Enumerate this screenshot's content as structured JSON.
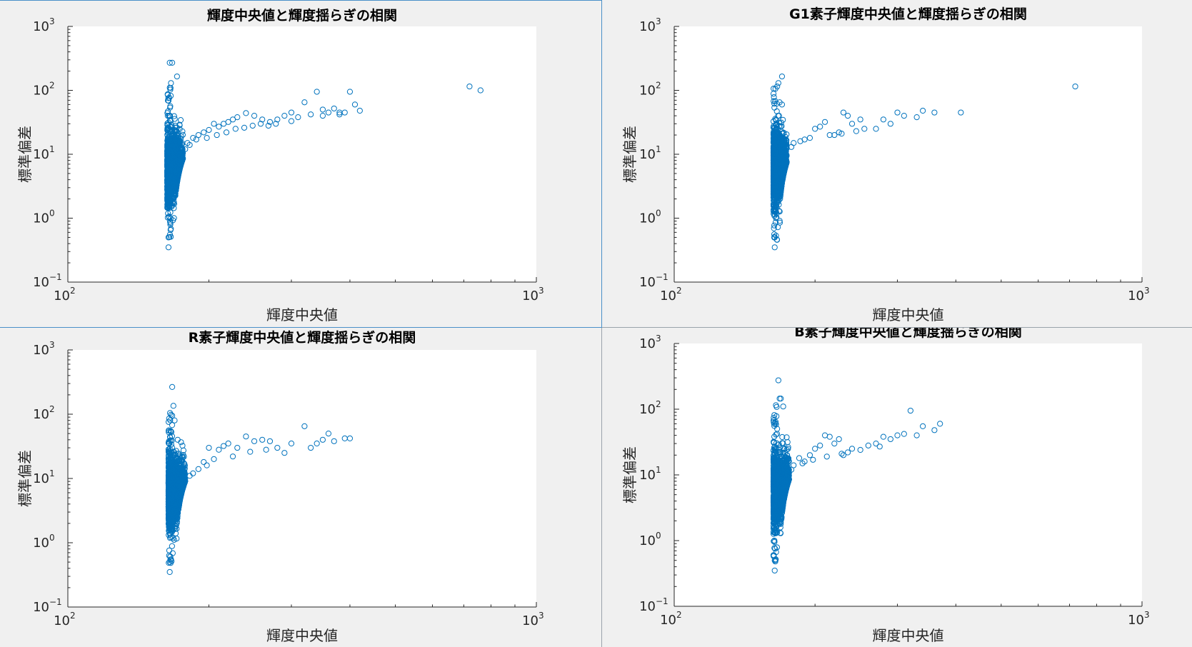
{
  "style": {
    "marker_color": "#0072bd",
    "axes_background": "#ffffff",
    "figure_background": "#f0f0f0",
    "axis_color": "#262626"
  },
  "chart_data": [
    {
      "type": "scatter",
      "title": "輝度中央値と輝度揺らぎの相関",
      "xlabel": "輝度中央値",
      "ylabel": "標準偏差",
      "xscale": "log",
      "yscale": "log",
      "xlim": [
        100,
        1000
      ],
      "ylim": [
        0.1,
        1000
      ],
      "xticks": [
        {
          "base": "10",
          "exp": "2"
        },
        {
          "base": "10",
          "exp": "3"
        }
      ],
      "yticks": [
        {
          "base": "10",
          "exp": "−1"
        },
        {
          "base": "10",
          "exp": "0"
        },
        {
          "base": "10",
          "exp": "1"
        },
        {
          "base": "10",
          "exp": "2"
        },
        {
          "base": "10",
          "exp": "3"
        }
      ],
      "marker": "open circle",
      "grid": false,
      "cluster": {
        "x_min": 163,
        "x_max": 176,
        "y_min": 0.35,
        "y_max": 275
      },
      "points": [
        {
          "x": 165,
          "y": 270
        },
        {
          "x": 167,
          "y": 270
        },
        {
          "x": 171,
          "y": 165
        },
        {
          "x": 166,
          "y": 130
        },
        {
          "x": 165,
          "y": 110
        },
        {
          "x": 164,
          "y": 0.35
        },
        {
          "x": 164,
          "y": 0.5
        },
        {
          "x": 180,
          "y": 15
        },
        {
          "x": 185,
          "y": 18
        },
        {
          "x": 190,
          "y": 20
        },
        {
          "x": 195,
          "y": 22
        },
        {
          "x": 200,
          "y": 24
        },
        {
          "x": 205,
          "y": 30
        },
        {
          "x": 210,
          "y": 27
        },
        {
          "x": 215,
          "y": 30
        },
        {
          "x": 220,
          "y": 32
        },
        {
          "x": 225,
          "y": 35
        },
        {
          "x": 230,
          "y": 38
        },
        {
          "x": 240,
          "y": 44
        },
        {
          "x": 250,
          "y": 40
        },
        {
          "x": 260,
          "y": 35
        },
        {
          "x": 270,
          "y": 32
        },
        {
          "x": 280,
          "y": 35
        },
        {
          "x": 290,
          "y": 40
        },
        {
          "x": 300,
          "y": 45
        },
        {
          "x": 320,
          "y": 65
        },
        {
          "x": 330,
          "y": 42
        },
        {
          "x": 340,
          "y": 95
        },
        {
          "x": 350,
          "y": 50
        },
        {
          "x": 360,
          "y": 45
        },
        {
          "x": 370,
          "y": 52
        },
        {
          "x": 380,
          "y": 45
        },
        {
          "x": 390,
          "y": 45
        },
        {
          "x": 400,
          "y": 95
        },
        {
          "x": 410,
          "y": 60
        },
        {
          "x": 420,
          "y": 48
        },
        {
          "x": 720,
          "y": 115
        },
        {
          "x": 760,
          "y": 100
        },
        {
          "x": 178,
          "y": 12
        },
        {
          "x": 182,
          "y": 14
        },
        {
          "x": 188,
          "y": 17
        },
        {
          "x": 198,
          "y": 18
        },
        {
          "x": 208,
          "y": 20
        },
        {
          "x": 218,
          "y": 22
        },
        {
          "x": 228,
          "y": 25
        },
        {
          "x": 238,
          "y": 26
        },
        {
          "x": 248,
          "y": 28
        },
        {
          "x": 258,
          "y": 30
        },
        {
          "x": 268,
          "y": 28
        },
        {
          "x": 278,
          "y": 30
        },
        {
          "x": 300,
          "y": 33
        },
        {
          "x": 310,
          "y": 38
        },
        {
          "x": 350,
          "y": 40
        },
        {
          "x": 380,
          "y": 42
        }
      ]
    },
    {
      "type": "scatter",
      "title": "G1素子輝度中央値と輝度揺らぎの相関",
      "xlabel": "輝度中央値",
      "ylabel": "標準偏差",
      "xscale": "log",
      "yscale": "log",
      "xlim": [
        100,
        1000
      ],
      "ylim": [
        0.1,
        1000
      ],
      "xticks": [
        {
          "base": "10",
          "exp": "2"
        },
        {
          "base": "10",
          "exp": "3"
        }
      ],
      "yticks": [
        {
          "base": "10",
          "exp": "−1"
        },
        {
          "base": "10",
          "exp": "0"
        },
        {
          "base": "10",
          "exp": "1"
        },
        {
          "base": "10",
          "exp": "2"
        },
        {
          "base": "10",
          "exp": "3"
        }
      ],
      "marker": "open circle",
      "grid": false,
      "cluster": {
        "x_min": 163,
        "x_max": 174,
        "y_min": 0.35,
        "y_max": 170
      },
      "points": [
        {
          "x": 170,
          "y": 165
        },
        {
          "x": 167,
          "y": 130
        },
        {
          "x": 166,
          "y": 115
        },
        {
          "x": 168,
          "y": 65
        },
        {
          "x": 170,
          "y": 60
        },
        {
          "x": 164,
          "y": 0.35
        },
        {
          "x": 164,
          "y": 0.5
        },
        {
          "x": 180,
          "y": 15
        },
        {
          "x": 190,
          "y": 17
        },
        {
          "x": 200,
          "y": 25
        },
        {
          "x": 205,
          "y": 27
        },
        {
          "x": 210,
          "y": 32
        },
        {
          "x": 220,
          "y": 20
        },
        {
          "x": 225,
          "y": 22
        },
        {
          "x": 230,
          "y": 45
        },
        {
          "x": 235,
          "y": 40
        },
        {
          "x": 240,
          "y": 30
        },
        {
          "x": 250,
          "y": 35
        },
        {
          "x": 255,
          "y": 25
        },
        {
          "x": 280,
          "y": 35
        },
        {
          "x": 300,
          "y": 45
        },
        {
          "x": 310,
          "y": 40
        },
        {
          "x": 330,
          "y": 38
        },
        {
          "x": 340,
          "y": 48
        },
        {
          "x": 360,
          "y": 45
        },
        {
          "x": 410,
          "y": 45
        },
        {
          "x": 720,
          "y": 115
        },
        {
          "x": 178,
          "y": 13
        },
        {
          "x": 186,
          "y": 16
        },
        {
          "x": 195,
          "y": 18
        },
        {
          "x": 215,
          "y": 20
        },
        {
          "x": 228,
          "y": 21
        },
        {
          "x": 245,
          "y": 23
        },
        {
          "x": 270,
          "y": 25
        },
        {
          "x": 290,
          "y": 30
        }
      ]
    },
    {
      "type": "scatter",
      "title": "R素子輝度中央値と輝度揺らぎの相関",
      "xlabel": "輝度中央値",
      "ylabel": "標準偏差",
      "xscale": "log",
      "yscale": "log",
      "xlim": [
        100,
        1000
      ],
      "ylim": [
        0.1,
        1000
      ],
      "xticks": [
        {
          "base": "10",
          "exp": "2"
        },
        {
          "base": "10",
          "exp": "3"
        }
      ],
      "yticks": [
        {
          "base": "10",
          "exp": "−1"
        },
        {
          "base": "10",
          "exp": "0"
        },
        {
          "base": "10",
          "exp": "1"
        },
        {
          "base": "10",
          "exp": "2"
        },
        {
          "base": "10",
          "exp": "3"
        }
      ],
      "marker": "open circle",
      "grid": false,
      "cluster": {
        "x_min": 164,
        "x_max": 178,
        "y_min": 0.35,
        "y_max": 270
      },
      "points": [
        {
          "x": 167,
          "y": 265
        },
        {
          "x": 168,
          "y": 135
        },
        {
          "x": 167,
          "y": 95
        },
        {
          "x": 169,
          "y": 80
        },
        {
          "x": 165,
          "y": 0.35
        },
        {
          "x": 165,
          "y": 0.5
        },
        {
          "x": 185,
          "y": 12
        },
        {
          "x": 190,
          "y": 14
        },
        {
          "x": 195,
          "y": 18
        },
        {
          "x": 200,
          "y": 30
        },
        {
          "x": 210,
          "y": 28
        },
        {
          "x": 215,
          "y": 32
        },
        {
          "x": 220,
          "y": 35
        },
        {
          "x": 230,
          "y": 30
        },
        {
          "x": 240,
          "y": 45
        },
        {
          "x": 250,
          "y": 38
        },
        {
          "x": 260,
          "y": 40
        },
        {
          "x": 270,
          "y": 38
        },
        {
          "x": 280,
          "y": 30
        },
        {
          "x": 290,
          "y": 25
        },
        {
          "x": 300,
          "y": 35
        },
        {
          "x": 320,
          "y": 65
        },
        {
          "x": 330,
          "y": 30
        },
        {
          "x": 340,
          "y": 35
        },
        {
          "x": 350,
          "y": 40
        },
        {
          "x": 360,
          "y": 50
        },
        {
          "x": 370,
          "y": 38
        },
        {
          "x": 390,
          "y": 42
        },
        {
          "x": 400,
          "y": 42
        },
        {
          "x": 182,
          "y": 11
        },
        {
          "x": 198,
          "y": 16
        },
        {
          "x": 205,
          "y": 20
        },
        {
          "x": 225,
          "y": 22
        },
        {
          "x": 245,
          "y": 26
        },
        {
          "x": 265,
          "y": 28
        }
      ]
    },
    {
      "type": "scatter",
      "title": "B素子輝度中央値と輝度揺らぎの相関",
      "xlabel": "輝度中央値",
      "ylabel": "標準偏差",
      "xscale": "log",
      "yscale": "log",
      "xlim": [
        100,
        1000
      ],
      "ylim": [
        0.1,
        1000
      ],
      "xticks": [
        {
          "base": "10",
          "exp": "2"
        },
        {
          "base": "10",
          "exp": "3"
        }
      ],
      "yticks": [
        {
          "base": "10",
          "exp": "−1"
        },
        {
          "base": "10",
          "exp": "0"
        },
        {
          "base": "10",
          "exp": "1"
        },
        {
          "base": "10",
          "exp": "2"
        },
        {
          "base": "10",
          "exp": "3"
        }
      ],
      "marker": "open circle",
      "grid": false,
      "cluster": {
        "x_min": 163,
        "x_max": 176,
        "y_min": 0.35,
        "y_max": 280
      },
      "points": [
        {
          "x": 167,
          "y": 275
        },
        {
          "x": 168,
          "y": 145
        },
        {
          "x": 169,
          "y": 145
        },
        {
          "x": 165,
          "y": 115
        },
        {
          "x": 171,
          "y": 110
        },
        {
          "x": 164,
          "y": 0.35
        },
        {
          "x": 164,
          "y": 0.5
        },
        {
          "x": 180,
          "y": 14
        },
        {
          "x": 185,
          "y": 18
        },
        {
          "x": 190,
          "y": 16
        },
        {
          "x": 195,
          "y": 20
        },
        {
          "x": 200,
          "y": 25
        },
        {
          "x": 205,
          "y": 28
        },
        {
          "x": 210,
          "y": 40
        },
        {
          "x": 215,
          "y": 38
        },
        {
          "x": 220,
          "y": 30
        },
        {
          "x": 225,
          "y": 35
        },
        {
          "x": 230,
          "y": 20
        },
        {
          "x": 235,
          "y": 22
        },
        {
          "x": 240,
          "y": 25
        },
        {
          "x": 260,
          "y": 28
        },
        {
          "x": 270,
          "y": 30
        },
        {
          "x": 280,
          "y": 38
        },
        {
          "x": 290,
          "y": 35
        },
        {
          "x": 300,
          "y": 40
        },
        {
          "x": 310,
          "y": 42
        },
        {
          "x": 320,
          "y": 95
        },
        {
          "x": 330,
          "y": 40
        },
        {
          "x": 340,
          "y": 55
        },
        {
          "x": 360,
          "y": 48
        },
        {
          "x": 370,
          "y": 60
        },
        {
          "x": 178,
          "y": 12
        },
        {
          "x": 188,
          "y": 15
        },
        {
          "x": 198,
          "y": 17
        },
        {
          "x": 212,
          "y": 19
        },
        {
          "x": 228,
          "y": 21
        },
        {
          "x": 250,
          "y": 24
        },
        {
          "x": 275,
          "y": 27
        }
      ]
    }
  ]
}
